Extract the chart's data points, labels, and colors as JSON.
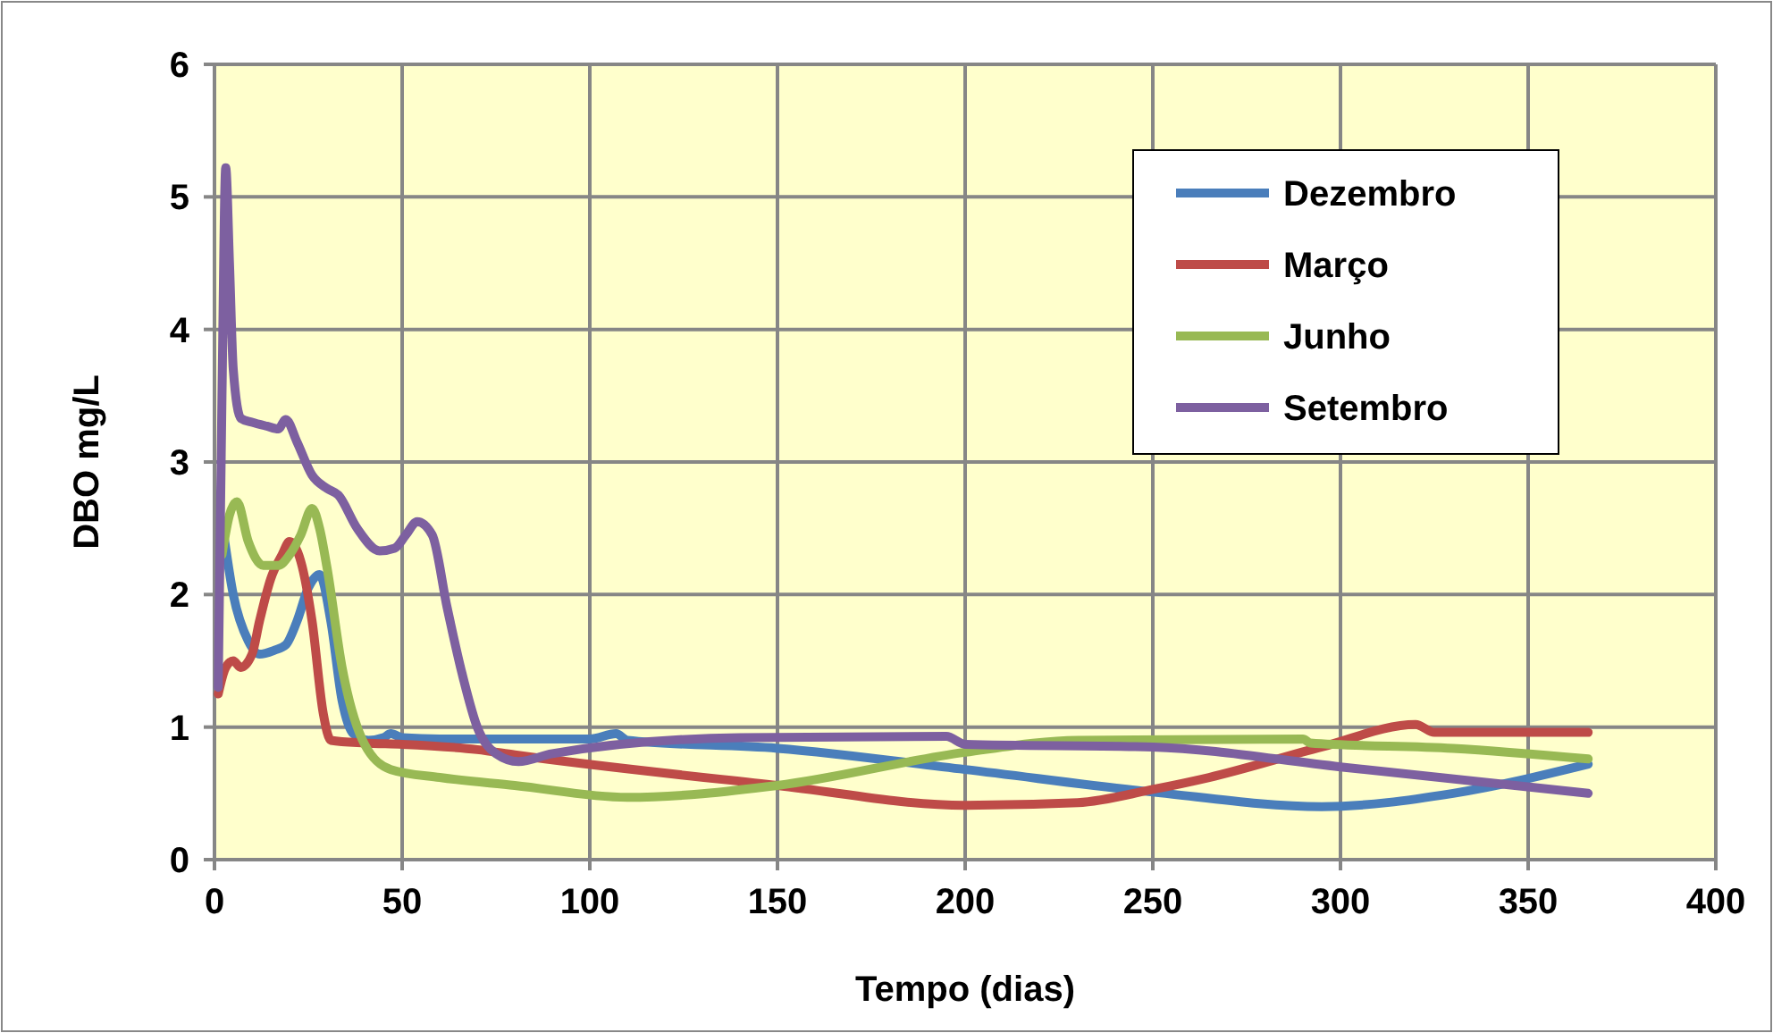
{
  "chart_data": {
    "type": "line",
    "xlabel": "Tempo (dias)",
    "ylabel": "DBO mg/L",
    "xlim": [
      0,
      400
    ],
    "ylim": [
      0,
      6
    ],
    "xticks": [
      0,
      50,
      100,
      150,
      200,
      250,
      300,
      350,
      400
    ],
    "yticks": [
      0,
      1,
      2,
      3,
      4,
      5,
      6
    ],
    "grid": true,
    "legend": "top right",
    "marker": "none",
    "line_style": "solid",
    "series": [
      {
        "name": "Dezembro",
        "color": "#4a7ebb",
        "x": [
          2,
          5,
          9,
          12,
          16,
          19,
          22,
          25,
          28,
          31,
          34,
          37,
          41,
          45,
          47,
          50,
          60,
          80,
          100,
          107,
          110,
          150,
          200,
          250,
          295,
          330,
          366
        ],
        "values": [
          2.55,
          2,
          1.65,
          1.55,
          1.58,
          1.62,
          1.8,
          2.05,
          2.15,
          1.8,
          1.2,
          0.95,
          0.9,
          0.92,
          0.95,
          0.92,
          0.91,
          0.91,
          0.91,
          0.95,
          0.9,
          0.84,
          0.68,
          0.51,
          0.4,
          0.5,
          0.72
        ]
      },
      {
        "name": "Março",
        "color": "#be4b48",
        "x": [
          1,
          3,
          5,
          7,
          10,
          12,
          15,
          18,
          20,
          23,
          26,
          29,
          31,
          40,
          50,
          70,
          80,
          150,
          200,
          230,
          250,
          265,
          295,
          320,
          325,
          366
        ],
        "values": [
          1.25,
          1.45,
          1.5,
          1.45,
          1.55,
          1.8,
          2.12,
          2.3,
          2.4,
          2.25,
          1.8,
          1.1,
          0.9,
          0.88,
          0.87,
          0.83,
          0.79,
          0.56,
          0.41,
          0.43,
          0.53,
          0.62,
          0.85,
          1.02,
          0.96,
          0.96
        ]
      },
      {
        "name": "Junho",
        "color": "#98b954",
        "x": [
          2,
          4,
          6,
          9,
          13,
          17,
          20,
          23,
          26,
          28,
          30,
          34,
          40,
          47,
          60,
          80,
          110,
          150,
          200,
          230,
          290,
          292,
          330,
          366
        ],
        "values": [
          2.3,
          2.6,
          2.7,
          2.4,
          2.22,
          2.22,
          2.3,
          2.45,
          2.65,
          2.5,
          2.2,
          1.45,
          0.87,
          0.68,
          0.62,
          0.56,
          0.47,
          0.56,
          0.81,
          0.9,
          0.91,
          0.88,
          0.84,
          0.76
        ]
      },
      {
        "name": "Setembro",
        "color": "#7d60a0",
        "x": [
          1,
          2,
          3,
          4,
          5,
          7,
          10,
          14,
          17,
          19,
          22,
          26,
          30,
          33,
          38,
          44,
          48,
          51,
          54,
          58,
          62,
          66,
          70,
          75,
          81,
          90,
          140,
          195,
          200,
          250,
          300,
          366
        ],
        "values": [
          1.3,
          3.5,
          5.22,
          4.5,
          3.7,
          3.33,
          3.3,
          3.27,
          3.25,
          3.32,
          3.15,
          2.9,
          2.8,
          2.75,
          2.5,
          2.33,
          2.35,
          2.45,
          2.55,
          2.45,
          1.9,
          1.4,
          1.0,
          0.8,
          0.74,
          0.8,
          0.92,
          0.93,
          0.87,
          0.85,
          0.7,
          0.5
        ]
      }
    ]
  }
}
